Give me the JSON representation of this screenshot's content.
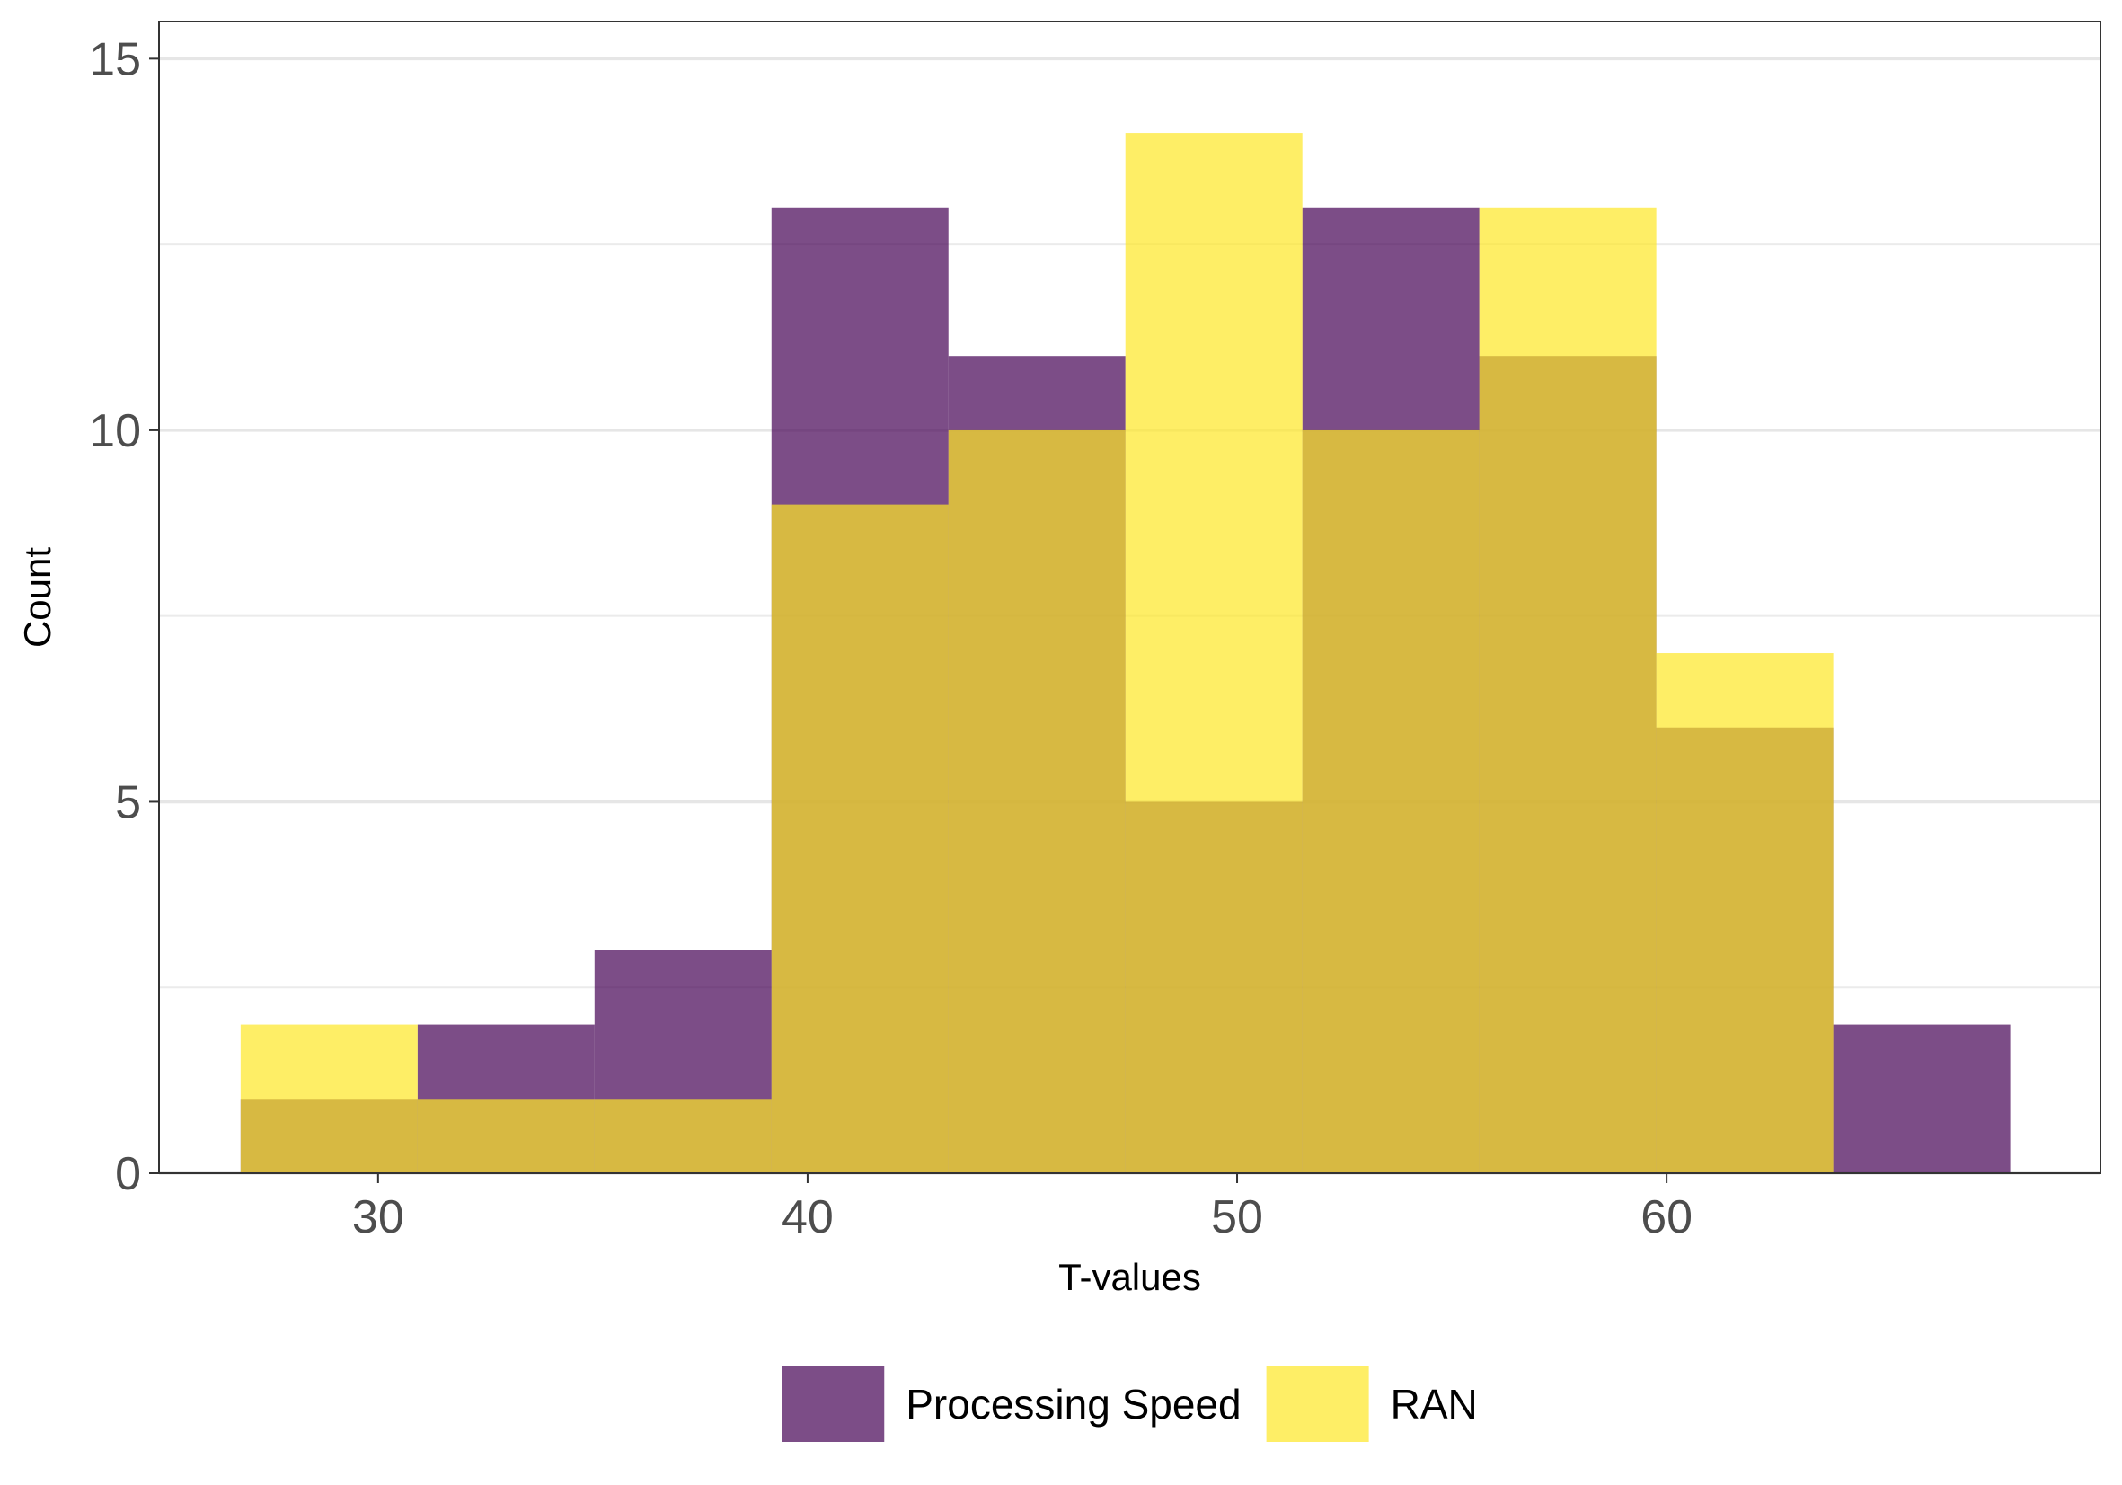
{
  "chart_data": {
    "type": "histogram",
    "xlabel": "T-values",
    "ylabel": "Count",
    "xlim": [
      24.9,
      70.1
    ],
    "ylim": [
      0,
      15.5
    ],
    "x_ticks": [
      30,
      40,
      50,
      60
    ],
    "y_ticks": [
      0,
      5,
      10,
      15
    ],
    "y_minor_gridlines": [
      2.5,
      7.5,
      12.5
    ],
    "grid": "horizontal",
    "legend_position": "bottom",
    "bin_edges": [
      26.8,
      30.92,
      35.04,
      39.16,
      43.28,
      47.4,
      51.52,
      55.64,
      59.76,
      63.88,
      68.0
    ],
    "series": [
      {
        "name": "Processing Speed",
        "color": "#440154",
        "opacity": 0.7,
        "counts": [
          1,
          2,
          3,
          13,
          11,
          5,
          13,
          11,
          6,
          2
        ]
      },
      {
        "name": "RAN",
        "color": "#FDE725",
        "opacity": 0.7,
        "counts": [
          2,
          1,
          1,
          9,
          10,
          14,
          10,
          13,
          7,
          0
        ]
      }
    ]
  }
}
